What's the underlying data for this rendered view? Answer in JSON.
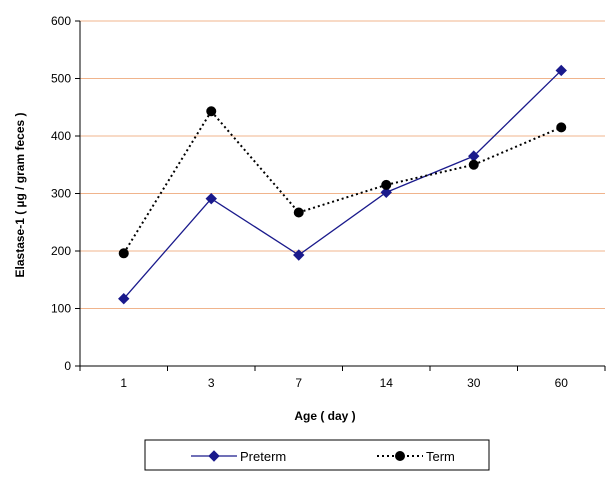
{
  "chart_data": {
    "type": "line",
    "title": "",
    "xlabel": "Age ( day )",
    "ylabel": "Elastase-1 ( µg / gram feces )",
    "categories": [
      "1",
      "3",
      "7",
      "14",
      "30",
      "60"
    ],
    "ylim": [
      0,
      600
    ],
    "yticks": [
      0,
      100,
      200,
      300,
      400,
      500,
      600
    ],
    "grid": true,
    "legend_position": "bottom",
    "colors": {
      "gridline": "#f0b48c",
      "axis": "#000000",
      "preterm": "#1a1a8c",
      "term": "#000000"
    },
    "series": [
      {
        "name": "Preterm",
        "values": [
          117,
          291,
          193,
          302,
          365,
          514
        ],
        "marker": "diamond",
        "line": "solid"
      },
      {
        "name": "Term",
        "values": [
          196,
          443,
          267,
          315,
          350,
          415
        ],
        "marker": "circle",
        "line": "dotted"
      }
    ]
  }
}
